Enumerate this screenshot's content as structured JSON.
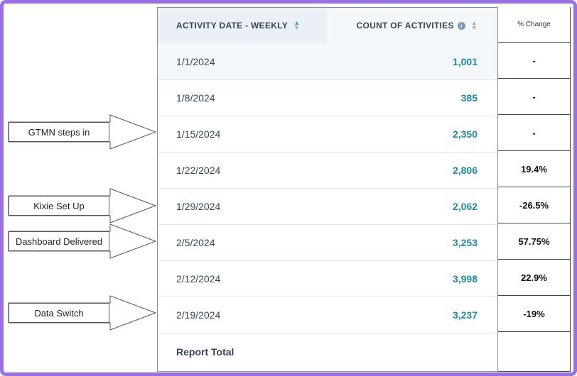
{
  "table": {
    "headers": {
      "date": "ACTIVITY DATE - WEEKLY",
      "count": "COUNT OF ACTIVITIES"
    },
    "rows": [
      {
        "date": "1/1/2024",
        "count": "1,001",
        "change": "-"
      },
      {
        "date": "1/8/2024",
        "count": "385",
        "change": "-"
      },
      {
        "date": "1/15/2024",
        "count": "2,350",
        "change": "-"
      },
      {
        "date": "1/22/2024",
        "count": "2,806",
        "change": "19.4%"
      },
      {
        "date": "1/29/2024",
        "count": "2,062",
        "change": "-26.5%"
      },
      {
        "date": "2/5/2024",
        "count": "3,253",
        "change": "57.75%"
      },
      {
        "date": "2/12/2024",
        "count": "3,998",
        "change": "22.9%"
      },
      {
        "date": "2/19/2024",
        "count": "3,237",
        "change": "-19%"
      }
    ],
    "total_label": "Report Total"
  },
  "change_column": {
    "header": "% Change"
  },
  "annotations": [
    {
      "label": "GTMN steps in"
    },
    {
      "label": "Kixie Set Up"
    },
    {
      "label": "Dashboard Delivered"
    },
    {
      "label": "Data Switch"
    }
  ],
  "colors": {
    "frame": "#9b6fe6",
    "count_text": "#1d8aa6",
    "sort_active": "#4aa0c8"
  },
  "icons": {
    "sort_date": "sort-up-active-icon",
    "info": "info-circle-icon",
    "sort_count": "sort-icon"
  }
}
